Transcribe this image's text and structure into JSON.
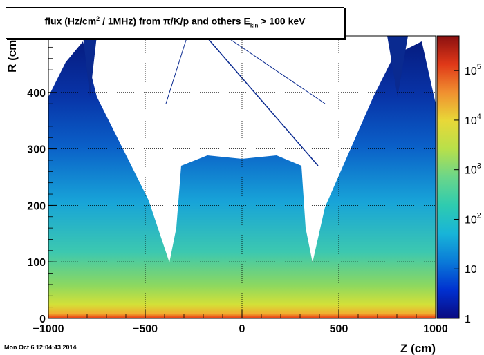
{
  "chart_data": {
    "type": "heatmap",
    "title": {
      "prefix": "flux (Hz/cm",
      "sup": "2",
      "mid": " / 1MHz) from  π/K/p and others  E",
      "sub": "kin",
      "suffix": " > 100 keV"
    },
    "xlabel": "Z (cm)",
    "ylabel": "R (cm)",
    "xlim": [
      -1000,
      1000
    ],
    "ylim": [
      0,
      500
    ],
    "x_ticks": [
      -1000,
      -500,
      0,
      500,
      1000
    ],
    "x_tick_labels": [
      "−1000",
      "−500",
      "0",
      "500",
      "1000"
    ],
    "y_ticks": [
      0,
      100,
      200,
      300,
      400
    ],
    "y_tick_labels": [
      "0",
      "100",
      "200",
      "300",
      "400"
    ],
    "colorbar": {
      "scale": "log",
      "range": [
        1,
        500000
      ],
      "tick_labels": [
        {
          "base": "1",
          "exp": "",
          "value": 1
        },
        {
          "base": "10",
          "exp": "",
          "value": 10
        },
        {
          "base": "10",
          "exp": "2",
          "value": 100
        },
        {
          "base": "10",
          "exp": "3",
          "value": 1000
        },
        {
          "base": "10",
          "exp": "4",
          "value": 10000
        },
        {
          "base": "10",
          "exp": "5",
          "value": 100000
        }
      ],
      "palette": [
        "#0a0a80",
        "#0030d0",
        "#0a7ad8",
        "#18b4d8",
        "#2ecbb0",
        "#6ad68a",
        "#b8e04a",
        "#e8d838",
        "#f09030",
        "#e03818",
        "#8a1010"
      ]
    },
    "grid": true,
    "timestamp": "Mon Oct  6 12:04:43 2014"
  }
}
